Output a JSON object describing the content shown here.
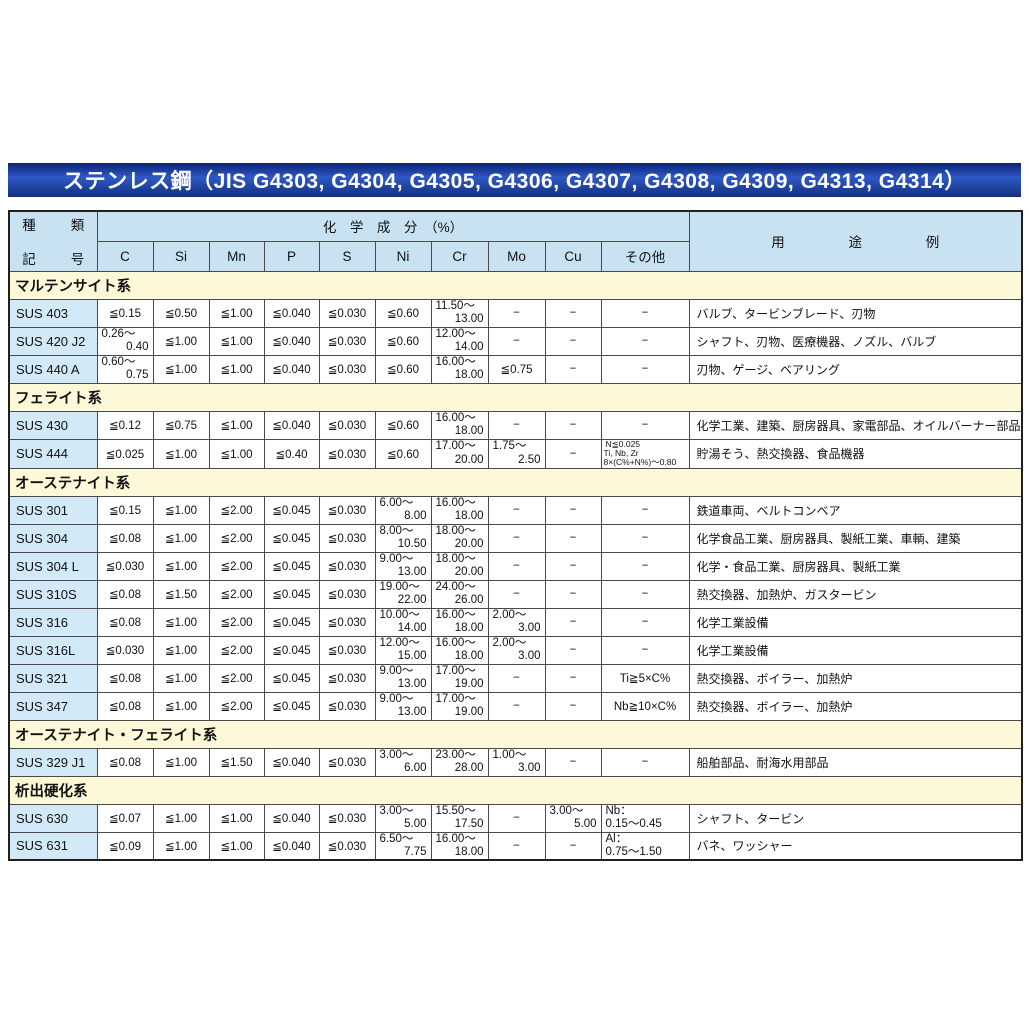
{
  "title": "ステンレス鋼（JIS G4303, G4304, G4305, G4306, G4307, G4308, G4309, G4313, G4314）",
  "colors": {
    "banner_blue": "#16348f",
    "header_blue": "#c9e2f2",
    "grade_blue": "#d2eaf8",
    "section_yellow": "#fcf8d8",
    "border_gray": "#4a4a4a"
  },
  "header": {
    "kind_top": "種　類",
    "kind_bottom": "記　号",
    "chem": "化　学　成　分　（%）",
    "cols": [
      "C",
      "Si",
      "Mn",
      "P",
      "S",
      "Ni",
      "Cr",
      "Mo",
      "Cu",
      "その他"
    ],
    "usage": "用　途　例"
  },
  "sections": [
    {
      "name": "マルテンサイト系",
      "rows": [
        {
          "grade": "SUS 403",
          "cells": [
            "≦0.15",
            "≦0.50",
            "≦1.00",
            "≦0.040",
            "≦0.030",
            "≦0.60",
            "11.50～\n13.00",
            "−",
            "−",
            "−"
          ],
          "usage": "バルブ、タービンブレード、刃物"
        },
        {
          "grade": "SUS 420 J2",
          "cells": [
            "0.26～\n0.40",
            "≦1.00",
            "≦1.00",
            "≦0.040",
            "≦0.030",
            "≦0.60",
            "12.00～\n14.00",
            "−",
            "−",
            "−"
          ],
          "usage": "シャフト、刃物、医療機器、ノズル、バルブ"
        },
        {
          "grade": "SUS 440 A",
          "cells": [
            "0.60～\n0.75",
            "≦1.00",
            "≦1.00",
            "≦0.040",
            "≦0.030",
            "≦0.60",
            "16.00～\n18.00",
            "≦0.75",
            "−",
            "−"
          ],
          "usage": "刃物、ゲージ、ベアリング"
        }
      ]
    },
    {
      "name": "フェライト系",
      "rows": [
        {
          "grade": "SUS 430",
          "cells": [
            "≦0.12",
            "≦0.75",
            "≦1.00",
            "≦0.040",
            "≦0.030",
            "≦0.60",
            "16.00～\n18.00",
            "−",
            "−",
            "−"
          ],
          "usage": "化学工業、建築、厨房器具、家電部品、オイルバーナー部品"
        },
        {
          "grade": "SUS 444",
          "cells": [
            "≦0.025",
            "≦1.00",
            "≦1.00",
            "≦0.40",
            "≦0.030",
            "≦0.60",
            "17.00～\n20.00",
            "1.75～\n2.50",
            "−",
            "N≦0.025\nTi, Nb, Zr\n8×(C%+N%)～0.80"
          ],
          "usage": "貯湯そう、熱交換器、食品機器"
        }
      ]
    },
    {
      "name": "オーステナイト系",
      "rows": [
        {
          "grade": "SUS 301",
          "cells": [
            "≦0.15",
            "≦1.00",
            "≦2.00",
            "≦0.045",
            "≦0.030",
            "6.00～\n8.00",
            "16.00～\n18.00",
            "−",
            "−",
            "−"
          ],
          "usage": "鉄道車両、ベルトコンベア"
        },
        {
          "grade": "SUS 304",
          "cells": [
            "≦0.08",
            "≦1.00",
            "≦2.00",
            "≦0.045",
            "≦0.030",
            "8.00～\n10.50",
            "18.00～\n20.00",
            "−",
            "−",
            "−"
          ],
          "usage": "化学食品工業、厨房器具、製紙工業、車輌、建築"
        },
        {
          "grade": "SUS 304 L",
          "cells": [
            "≦0.030",
            "≦1.00",
            "≦2.00",
            "≦0.045",
            "≦0.030",
            "9.00～\n13.00",
            "18.00～\n20.00",
            "−",
            "−",
            "−"
          ],
          "usage": "化学・食品工業、厨房器具、製紙工業"
        },
        {
          "grade": "SUS 310S",
          "cells": [
            "≦0.08",
            "≦1.50",
            "≦2.00",
            "≦0.045",
            "≦0.030",
            "19.00～\n22.00",
            "24.00～\n26.00",
            "−",
            "−",
            "−"
          ],
          "usage": "熱交換器、加熱炉、ガスタービン"
        },
        {
          "grade": "SUS 316",
          "cells": [
            "≦0.08",
            "≦1.00",
            "≦2.00",
            "≦0.045",
            "≦0.030",
            "10.00～\n14.00",
            "16.00～\n18.00",
            "2.00～\n3.00",
            "−",
            "−"
          ],
          "usage": "化学工業設備"
        },
        {
          "grade": "SUS 316L",
          "cells": [
            "≦0.030",
            "≦1.00",
            "≦2.00",
            "≦0.045",
            "≦0.030",
            "12.00～\n15.00",
            "16.00～\n18.00",
            "2.00～\n3.00",
            "−",
            "−"
          ],
          "usage": "化学工業設備"
        },
        {
          "grade": "SUS 321",
          "cells": [
            "≦0.08",
            "≦1.00",
            "≦2.00",
            "≦0.045",
            "≦0.030",
            "9.00～\n13.00",
            "17.00～\n19.00",
            "−",
            "−",
            "Ti≧5×C%"
          ],
          "usage": "熱交換器、ボイラー、加熱炉"
        },
        {
          "grade": "SUS 347",
          "cells": [
            "≦0.08",
            "≦1.00",
            "≦2.00",
            "≦0.045",
            "≦0.030",
            "9.00～\n13.00",
            "17.00～\n19.00",
            "−",
            "−",
            "Nb≧10×C%"
          ],
          "usage": "熱交換器、ボイラー、加熱炉"
        }
      ]
    },
    {
      "name": "オーステナイト・フェライト系",
      "rows": [
        {
          "grade": "SUS 329 J1",
          "cells": [
            "≦0.08",
            "≦1.00",
            "≦1.50",
            "≦0.040",
            "≦0.030",
            "3.00～\n6.00",
            "23.00～\n28.00",
            "1.00～\n3.00",
            "−",
            "−"
          ],
          "usage": "船舶部品、耐海水用部品"
        }
      ]
    },
    {
      "name": "析出硬化系",
      "rows": [
        {
          "grade": "SUS 630",
          "cells": [
            "≦0.07",
            "≦1.00",
            "≦1.00",
            "≦0.040",
            "≦0.030",
            "3.00～\n5.00",
            "15.50～\n17.50",
            "−",
            "3.00～\n5.00",
            "Nb：\n0.15～0.45"
          ],
          "usage": "シャフト、タービン"
        },
        {
          "grade": "SUS 631",
          "cells": [
            "≦0.09",
            "≦1.00",
            "≦1.00",
            "≦0.040",
            "≦0.030",
            "6.50～\n7.75",
            "16.00～\n18.00",
            "−",
            "−",
            "Al：\n0.75～1.50"
          ],
          "usage": "バネ、ワッシャー"
        }
      ]
    }
  ]
}
